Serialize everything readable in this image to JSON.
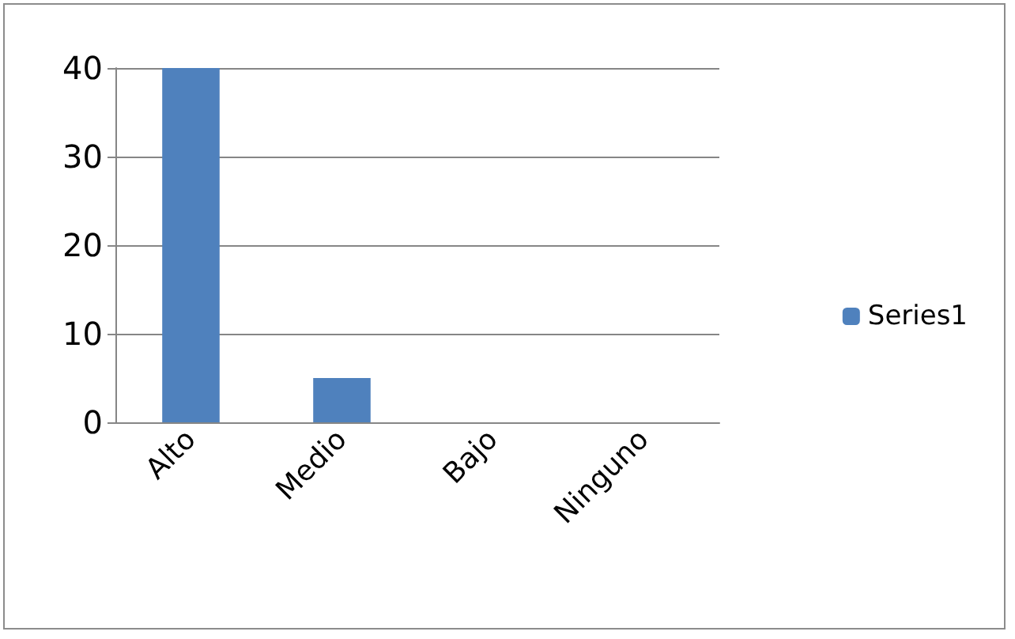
{
  "chart_data": {
    "type": "bar",
    "categories": [
      "Alto",
      "Medio",
      "Bajo",
      "Ninguno"
    ],
    "series": [
      {
        "name": "Series1",
        "color": "#4f81bd",
        "values": [
          40,
          5,
          0,
          0
        ]
      }
    ],
    "ylim": [
      0,
      40
    ],
    "yticks": [
      0,
      10,
      20,
      30,
      40
    ],
    "grid": "y",
    "legend": "right"
  }
}
